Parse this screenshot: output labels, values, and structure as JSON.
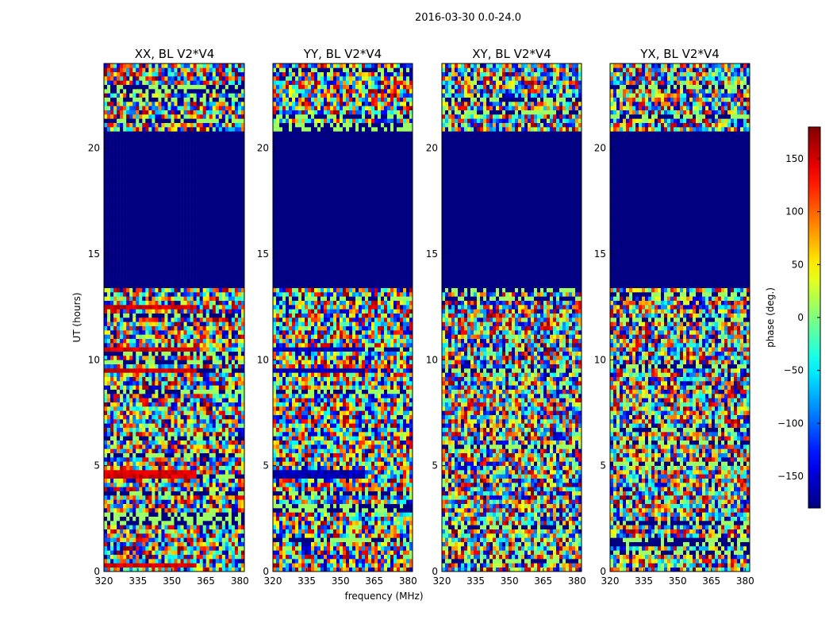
{
  "figure_title": "2016-03-30 0.0-24.0",
  "colorbar": {
    "label": "phase (deg.)",
    "range": [
      -180,
      180
    ],
    "ticks": [
      150,
      100,
      50,
      0,
      -50,
      -100,
      -150
    ],
    "tick_labels": [
      "150",
      "100",
      "50",
      "0",
      "−50",
      "−100",
      "−150"
    ],
    "colormap": "jet",
    "colors": [
      "#000080",
      "#0000ff",
      "#00ffff",
      "#80ff80",
      "#ffff00",
      "#ff0000",
      "#800000"
    ]
  },
  "chart_data": {
    "type": "heatmap",
    "title": "2016-03-30 0.0-24.0",
    "xlabel": "frequency (MHz)",
    "ylabel": "UT (hours)",
    "xlim": [
      320,
      382
    ],
    "ylim": [
      0,
      24
    ],
    "xticks": [
      320,
      335,
      350,
      365,
      380
    ],
    "xtick_labels": [
      "320",
      "335",
      "350",
      "365",
      "380"
    ],
    "yticks": [
      0,
      5,
      10,
      15,
      20
    ],
    "ytick_labels": [
      "0",
      "5",
      "10",
      "15",
      "20"
    ],
    "zlabel": "phase (deg.)",
    "zlim": [
      -180,
      180
    ],
    "gap_hours": [
      13.3,
      20.8
    ],
    "gap_phase": -180,
    "panels": [
      {
        "title": "XX, BL V2*V4",
        "strong_bands_hours": [
          [
            12.3,
            12.6
          ],
          [
            10.4,
            10.6
          ],
          [
            9.3,
            9.6
          ],
          [
            4.5,
            4.7
          ],
          [
            0.2,
            0.4
          ]
        ],
        "band_phase": 150
      },
      {
        "title": "YY, BL V2*V4",
        "strong_bands_hours": [
          [
            10.4,
            10.6
          ],
          [
            9.3,
            9.6
          ],
          [
            4.5,
            4.7
          ]
        ],
        "band_phase": -160
      },
      {
        "title": "XY, BL V2*V4",
        "strong_bands_hours": [],
        "band_phase": 0
      },
      {
        "title": "YX, BL V2*V4",
        "strong_bands_hours": [],
        "band_phase": 0
      }
    ]
  }
}
